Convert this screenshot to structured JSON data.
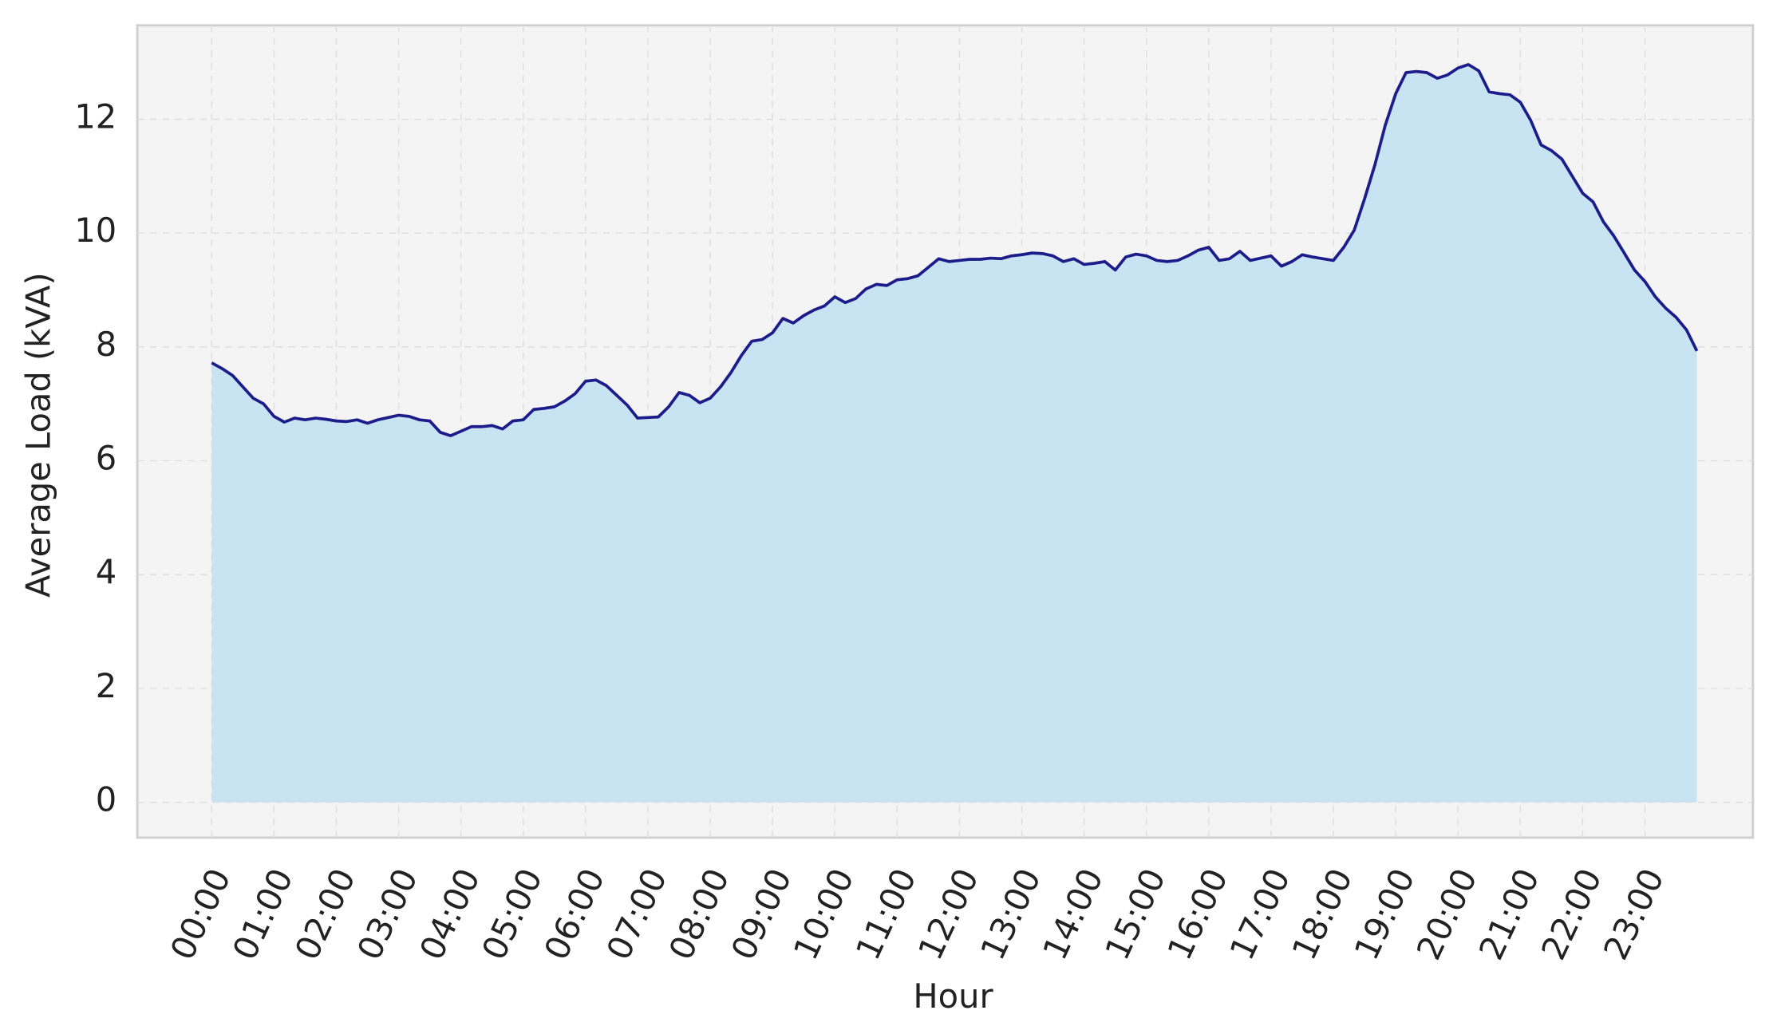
{
  "chart_data": {
    "type": "area",
    "x_label": "Hour",
    "y_label": "Average Load (kVA)",
    "categories": [
      "00:00",
      null,
      null,
      null,
      null,
      null,
      "01:00",
      null,
      null,
      null,
      null,
      null,
      "02:00",
      null,
      null,
      null,
      null,
      null,
      "03:00",
      null,
      null,
      null,
      null,
      null,
      "04:00",
      null,
      null,
      null,
      null,
      null,
      "05:00",
      null,
      null,
      null,
      null,
      null,
      "06:00",
      null,
      null,
      null,
      null,
      null,
      "07:00",
      null,
      null,
      null,
      null,
      null,
      "08:00",
      null,
      null,
      null,
      null,
      null,
      "09:00",
      null,
      null,
      null,
      null,
      null,
      "10:00",
      null,
      null,
      null,
      null,
      null,
      "11:00",
      null,
      null,
      null,
      null,
      null,
      "12:00",
      null,
      null,
      null,
      null,
      null,
      "13:00",
      null,
      null,
      null,
      null,
      null,
      "14:00",
      null,
      null,
      null,
      null,
      null,
      "15:00",
      null,
      null,
      null,
      null,
      null,
      "16:00",
      null,
      null,
      null,
      null,
      null,
      "17:00",
      null,
      null,
      null,
      null,
      null,
      "18:00",
      null,
      null,
      null,
      null,
      null,
      "19:00",
      null,
      null,
      null,
      null,
      null,
      "20:00",
      null,
      null,
      null,
      null,
      null,
      "21:00",
      null,
      null,
      null,
      null,
      null,
      "22:00",
      null,
      null,
      null,
      null,
      null,
      "23:00",
      null,
      null,
      null,
      null,
      null
    ],
    "values": [
      7.72,
      7.62,
      7.5,
      7.3,
      7.1,
      7.0,
      6.78,
      6.68,
      6.75,
      6.72,
      6.75,
      6.73,
      6.7,
      6.69,
      6.72,
      6.66,
      6.72,
      6.76,
      6.8,
      6.78,
      6.72,
      6.7,
      6.5,
      6.44,
      6.52,
      6.6,
      6.6,
      6.62,
      6.56,
      6.7,
      6.72,
      6.9,
      6.92,
      6.95,
      7.05,
      7.18,
      7.4,
      7.42,
      7.32,
      7.15,
      6.98,
      6.75,
      6.76,
      6.77,
      6.95,
      7.2,
      7.15,
      7.02,
      7.1,
      7.3,
      7.55,
      7.85,
      8.1,
      8.13,
      8.25,
      8.5,
      8.42,
      8.55,
      8.65,
      8.72,
      8.88,
      8.78,
      8.85,
      9.02,
      9.1,
      9.08,
      9.18,
      9.2,
      9.25,
      9.4,
      9.55,
      9.5,
      9.52,
      9.54,
      9.54,
      9.56,
      9.55,
      9.6,
      9.62,
      9.65,
      9.64,
      9.6,
      9.5,
      9.55,
      9.45,
      9.47,
      9.5,
      9.35,
      9.58,
      9.63,
      9.6,
      9.52,
      9.5,
      9.52,
      9.6,
      9.7,
      9.75,
      9.52,
      9.55,
      9.68,
      9.52,
      9.56,
      9.6,
      9.42,
      9.5,
      9.62,
      9.58,
      9.55,
      9.52,
      9.75,
      10.05,
      10.6,
      11.2,
      11.9,
      12.45,
      12.82,
      12.84,
      12.82,
      12.72,
      12.78,
      12.9,
      12.96,
      12.85,
      12.48,
      12.45,
      12.43,
      12.3,
      11.98,
      11.55,
      11.45,
      11.3,
      11.0,
      10.7,
      10.55,
      10.2,
      9.95,
      9.65,
      9.35,
      9.15,
      8.88,
      8.68,
      8.52,
      8.3,
      7.93
    ],
    "line_color": "#1c1c8a",
    "fill_color": "#c8e4f2",
    "ylim": [
      -0.62,
      13.65
    ],
    "yticks": [
      0,
      2,
      4,
      6,
      8,
      10,
      12
    ],
    "grid": true
  }
}
